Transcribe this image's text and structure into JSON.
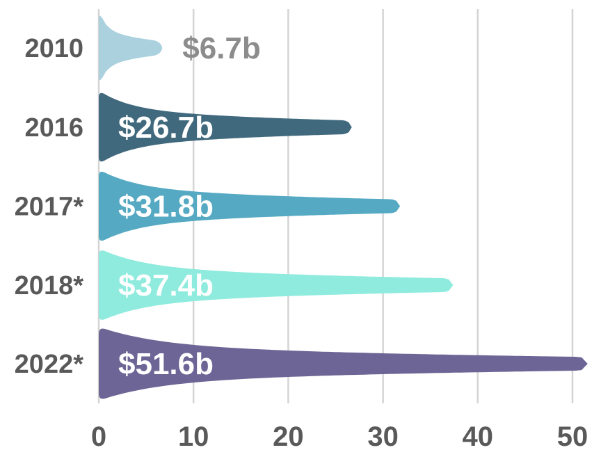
{
  "chart_data": {
    "type": "bar",
    "orientation": "horizontal",
    "title": "",
    "categories": [
      "2010",
      "2016",
      "2017*",
      "2018*",
      "2022*"
    ],
    "values": [
      6.7,
      26.7,
      31.8,
      37.4,
      51.6
    ],
    "value_labels": [
      "$6.7b",
      "$26.7b",
      "$31.8b",
      "$37.4b",
      "$51.6b"
    ],
    "value_label_placement": [
      "outside",
      "inside",
      "inside",
      "inside",
      "inside"
    ],
    "value_label_colors": [
      "#8c8c8c",
      "#ffffff",
      "#ffffff",
      "#ffffff",
      "#ffffff"
    ],
    "bar_colors": [
      "#abd1de",
      "#40697e",
      "#55a9c3",
      "#8febdd",
      "#6c6595"
    ],
    "bar_shape": "teardrop-comet",
    "x_ticks": [
      0,
      10,
      20,
      30,
      40,
      50
    ],
    "x_tick_labels": [
      "0",
      "10",
      "20",
      "30",
      "40",
      "50"
    ],
    "xlim": [
      0,
      53
    ],
    "xlabel": "",
    "ylabel": "",
    "grid": true,
    "legend": false
  },
  "styles": {
    "background": "#ffffff",
    "grid_color": "#d4d4d4",
    "tick_label_color": "#595959",
    "category_label_color": "#595959",
    "outside_value_color": "#8c8c8c",
    "inside_value_color": "#ffffff"
  }
}
